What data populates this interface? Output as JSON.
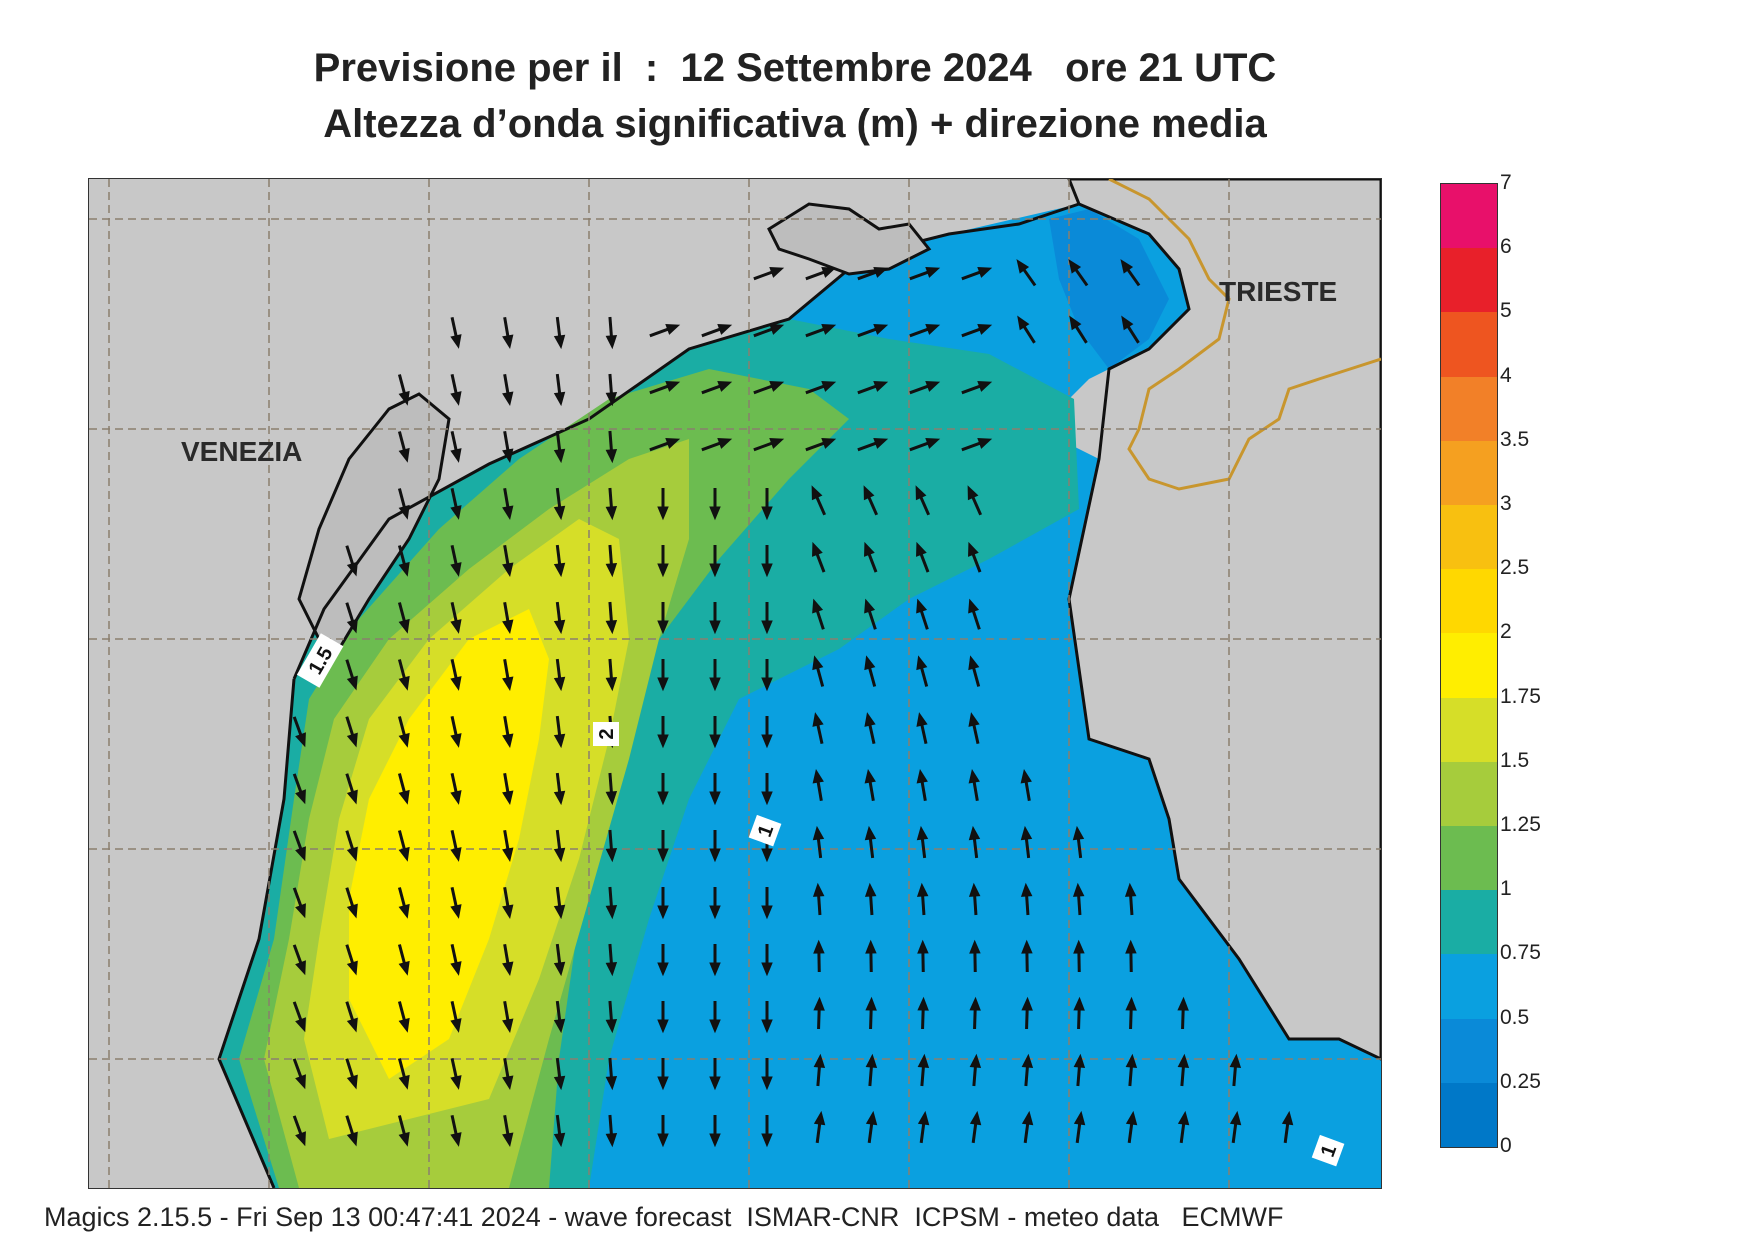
{
  "header": {
    "line1": "Previsione per il  :  12 Settembre 2024   ore 21 UTC",
    "line2": "Altezza d’onda significativa (m) + direzione media"
  },
  "map": {
    "cities": [
      "VENEZIA",
      "TRIESTE"
    ],
    "contour_labels": [
      "1.5",
      "2",
      "1",
      "1"
    ],
    "colors": {
      "land": "#c8c8c8",
      "coast": "#111111",
      "border": "#c8962e",
      "grid": "#8a7f6e"
    }
  },
  "legend": {
    "labels": [
      "7",
      "6",
      "5",
      "4",
      "3.5",
      "3",
      "2.5",
      "2",
      "1.75",
      "1.5",
      "1.25",
      "1",
      "0.75",
      "0.5",
      "0.25",
      "0"
    ],
    "colors": [
      "#e8106a",
      "#e8202a",
      "#ee5520",
      "#f28028",
      "#f5a020",
      "#f8c010",
      "#ffd800",
      "#ffee00",
      "#d6de28",
      "#a6cc3c",
      "#6cbc50",
      "#1aada4",
      "#0aa0e0",
      "#0a8ad8",
      "#0078c8",
      "#0064b8"
    ]
  },
  "footer": {
    "text": "Magics 2.15.5 - Fri Sep 13 00:47:41 2024 - wave forecast  ISMAR-CNR  ICPSM - meteo data   ECMWF"
  }
}
